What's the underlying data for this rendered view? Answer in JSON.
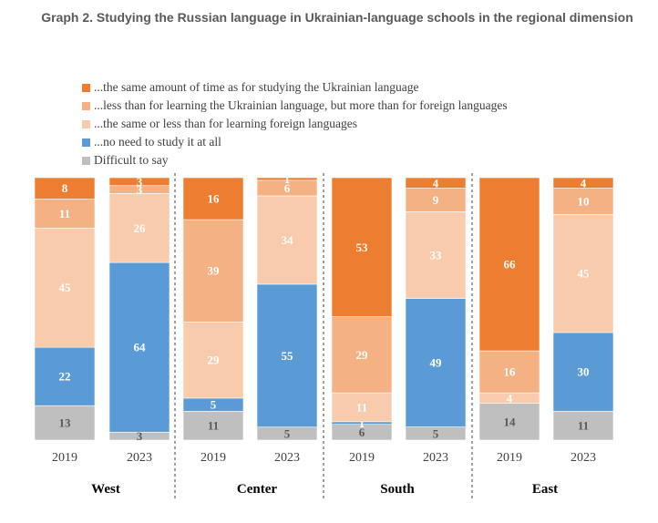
{
  "title": "Graph 2. Studying the Russian language in Ukrainian-language schools in the regional dimension",
  "chart_data": {
    "type": "bar",
    "stacked": true,
    "percent_stacked": true,
    "legend_position": "top-left",
    "grid": false,
    "categories": [
      "2019",
      "2023",
      "2019",
      "2023",
      "2019",
      "2023",
      "2019",
      "2023"
    ],
    "groups": [
      {
        "name": "West",
        "years": [
          "2019",
          "2023"
        ]
      },
      {
        "name": "Center",
        "years": [
          "2019",
          "2023"
        ]
      },
      {
        "name": "South",
        "years": [
          "2019",
          "2023"
        ]
      },
      {
        "name": "East",
        "years": [
          "2019",
          "2023"
        ]
      }
    ],
    "series": [
      {
        "name": "...the same amount of time as for studying the Ukrainian language",
        "color": "#ed7d31",
        "label_color": "#ffffff",
        "values": [
          8,
          3,
          16,
          1,
          53,
          4,
          66,
          4
        ]
      },
      {
        "name": "...less than for learning the Ukrainian language, but more than for foreign languages",
        "color": "#f4b183",
        "label_color": "#ffffff",
        "values": [
          11,
          3,
          39,
          6,
          29,
          9,
          16,
          10
        ]
      },
      {
        "name": "...the same or less than for learning foreign languages",
        "color": "#f8cbad",
        "label_color": "#ffffff",
        "values": [
          45,
          26,
          29,
          34,
          11,
          33,
          4,
          45
        ]
      },
      {
        "name": "...no need to study it at all",
        "color": "#5b9bd5",
        "label_color": "#ffffff",
        "values": [
          22,
          64,
          5,
          55,
          1,
          49,
          0,
          30
        ]
      },
      {
        "name": "Difficult to say",
        "color": "#bfbfbf",
        "label_color": "#595959",
        "values": [
          13,
          3,
          11,
          5,
          6,
          5,
          14,
          11
        ]
      }
    ]
  }
}
